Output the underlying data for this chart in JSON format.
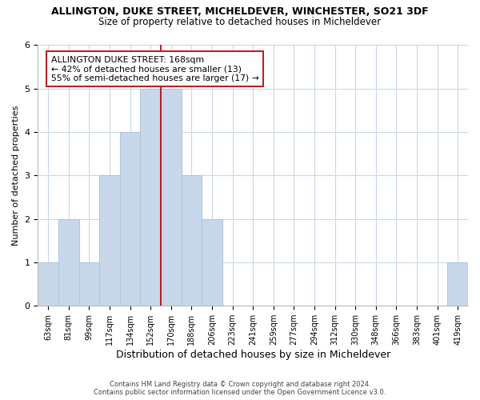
{
  "title_line1": "ALLINGTON, DUKE STREET, MICHELDEVER, WINCHESTER, SO21 3DF",
  "title_line2": "Size of property relative to detached houses in Micheldever",
  "xlabel": "Distribution of detached houses by size in Micheldever",
  "ylabel": "Number of detached properties",
  "bar_values": [
    1,
    2,
    1,
    3,
    4,
    5,
    5,
    3,
    2,
    0,
    0,
    0,
    0,
    0,
    0,
    0,
    0,
    0,
    0,
    0,
    1
  ],
  "bin_labels": [
    "63sqm",
    "81sqm",
    "99sqm",
    "117sqm",
    "134sqm",
    "152sqm",
    "170sqm",
    "188sqm",
    "206sqm",
    "223sqm",
    "241sqm",
    "259sqm",
    "277sqm",
    "294sqm",
    "312sqm",
    "330sqm",
    "348sqm",
    "366sqm",
    "383sqm",
    "401sqm",
    "419sqm"
  ],
  "bar_color": "#c8d8ea",
  "bar_edge_color": "#aec8dc",
  "reference_line_color": "#bb2222",
  "reference_line_x": 5.5,
  "ylim": [
    0,
    6
  ],
  "yticks": [
    0,
    1,
    2,
    3,
    4,
    5,
    6
  ],
  "annotation_title": "ALLINGTON DUKE STREET: 168sqm",
  "annotation_line1": "← 42% of detached houses are smaller (13)",
  "annotation_line2": "55% of semi-detached houses are larger (17) →",
  "annotation_box_facecolor": "#ffffff",
  "annotation_box_edgecolor": "#bb2222",
  "footer_line1": "Contains HM Land Registry data © Crown copyright and database right 2024.",
  "footer_line2": "Contains public sector information licensed under the Open Government Licence v3.0.",
  "background_color": "#ffffff",
  "grid_color": "#c8d8ea"
}
